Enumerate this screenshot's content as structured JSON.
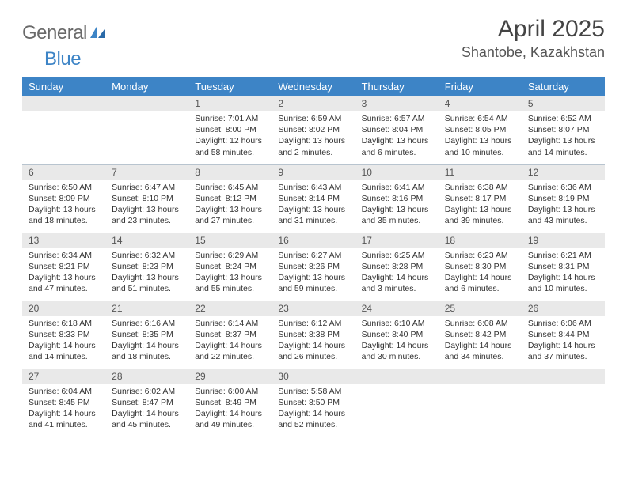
{
  "brand": {
    "part1": "General",
    "part2": "Blue"
  },
  "title": "April 2025",
  "location": "Shantobe, Kazakhstan",
  "colors": {
    "header_bg": "#3d84c6",
    "header_fg": "#ffffff",
    "daynum_bg": "#e9e9e9",
    "grid_border": "#b8c4cf",
    "logo_gray": "#6a6a6a",
    "logo_blue": "#3d84c6"
  },
  "fonts": {
    "title_size": 30,
    "location_size": 18,
    "weekday_size": 13,
    "daynum_size": 12,
    "body_size": 10.5
  },
  "weekdays": [
    "Sunday",
    "Monday",
    "Tuesday",
    "Wednesday",
    "Thursday",
    "Friday",
    "Saturday"
  ],
  "first_weekday_index": 2,
  "days": [
    {
      "n": 1,
      "sunrise": "7:01 AM",
      "sunset": "8:00 PM",
      "daylight": "12 hours and 58 minutes."
    },
    {
      "n": 2,
      "sunrise": "6:59 AM",
      "sunset": "8:02 PM",
      "daylight": "13 hours and 2 minutes."
    },
    {
      "n": 3,
      "sunrise": "6:57 AM",
      "sunset": "8:04 PM",
      "daylight": "13 hours and 6 minutes."
    },
    {
      "n": 4,
      "sunrise": "6:54 AM",
      "sunset": "8:05 PM",
      "daylight": "13 hours and 10 minutes."
    },
    {
      "n": 5,
      "sunrise": "6:52 AM",
      "sunset": "8:07 PM",
      "daylight": "13 hours and 14 minutes."
    },
    {
      "n": 6,
      "sunrise": "6:50 AM",
      "sunset": "8:09 PM",
      "daylight": "13 hours and 18 minutes."
    },
    {
      "n": 7,
      "sunrise": "6:47 AM",
      "sunset": "8:10 PM",
      "daylight": "13 hours and 23 minutes."
    },
    {
      "n": 8,
      "sunrise": "6:45 AM",
      "sunset": "8:12 PM",
      "daylight": "13 hours and 27 minutes."
    },
    {
      "n": 9,
      "sunrise": "6:43 AM",
      "sunset": "8:14 PM",
      "daylight": "13 hours and 31 minutes."
    },
    {
      "n": 10,
      "sunrise": "6:41 AM",
      "sunset": "8:16 PM",
      "daylight": "13 hours and 35 minutes."
    },
    {
      "n": 11,
      "sunrise": "6:38 AM",
      "sunset": "8:17 PM",
      "daylight": "13 hours and 39 minutes."
    },
    {
      "n": 12,
      "sunrise": "6:36 AM",
      "sunset": "8:19 PM",
      "daylight": "13 hours and 43 minutes."
    },
    {
      "n": 13,
      "sunrise": "6:34 AM",
      "sunset": "8:21 PM",
      "daylight": "13 hours and 47 minutes."
    },
    {
      "n": 14,
      "sunrise": "6:32 AM",
      "sunset": "8:23 PM",
      "daylight": "13 hours and 51 minutes."
    },
    {
      "n": 15,
      "sunrise": "6:29 AM",
      "sunset": "8:24 PM",
      "daylight": "13 hours and 55 minutes."
    },
    {
      "n": 16,
      "sunrise": "6:27 AM",
      "sunset": "8:26 PM",
      "daylight": "13 hours and 59 minutes."
    },
    {
      "n": 17,
      "sunrise": "6:25 AM",
      "sunset": "8:28 PM",
      "daylight": "14 hours and 3 minutes."
    },
    {
      "n": 18,
      "sunrise": "6:23 AM",
      "sunset": "8:30 PM",
      "daylight": "14 hours and 6 minutes."
    },
    {
      "n": 19,
      "sunrise": "6:21 AM",
      "sunset": "8:31 PM",
      "daylight": "14 hours and 10 minutes."
    },
    {
      "n": 20,
      "sunrise": "6:18 AM",
      "sunset": "8:33 PM",
      "daylight": "14 hours and 14 minutes."
    },
    {
      "n": 21,
      "sunrise": "6:16 AM",
      "sunset": "8:35 PM",
      "daylight": "14 hours and 18 minutes."
    },
    {
      "n": 22,
      "sunrise": "6:14 AM",
      "sunset": "8:37 PM",
      "daylight": "14 hours and 22 minutes."
    },
    {
      "n": 23,
      "sunrise": "6:12 AM",
      "sunset": "8:38 PM",
      "daylight": "14 hours and 26 minutes."
    },
    {
      "n": 24,
      "sunrise": "6:10 AM",
      "sunset": "8:40 PM",
      "daylight": "14 hours and 30 minutes."
    },
    {
      "n": 25,
      "sunrise": "6:08 AM",
      "sunset": "8:42 PM",
      "daylight": "14 hours and 34 minutes."
    },
    {
      "n": 26,
      "sunrise": "6:06 AM",
      "sunset": "8:44 PM",
      "daylight": "14 hours and 37 minutes."
    },
    {
      "n": 27,
      "sunrise": "6:04 AM",
      "sunset": "8:45 PM",
      "daylight": "14 hours and 41 minutes."
    },
    {
      "n": 28,
      "sunrise": "6:02 AM",
      "sunset": "8:47 PM",
      "daylight": "14 hours and 45 minutes."
    },
    {
      "n": 29,
      "sunrise": "6:00 AM",
      "sunset": "8:49 PM",
      "daylight": "14 hours and 49 minutes."
    },
    {
      "n": 30,
      "sunrise": "5:58 AM",
      "sunset": "8:50 PM",
      "daylight": "14 hours and 52 minutes."
    }
  ],
  "labels": {
    "sunrise": "Sunrise:",
    "sunset": "Sunset:",
    "daylight": "Daylight:"
  }
}
